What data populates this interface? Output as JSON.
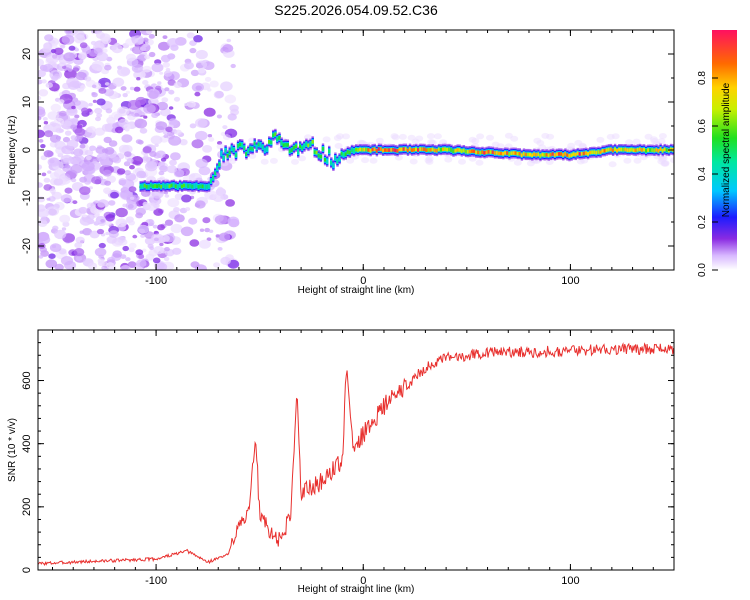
{
  "figure": {
    "title": "S225.2026.054.09.52.C36"
  },
  "chart_data": [
    {
      "type": "heatmap",
      "title": "S225.2026.054.09.52.C36",
      "xlabel": "Height of straight line (km)",
      "ylabel": "Frequency (Hz)",
      "xlim": [
        -157,
        150
      ],
      "ylim": [
        -25,
        25
      ],
      "x_ticks": [
        -100,
        0,
        100
      ],
      "y_ticks": [
        -20,
        -10,
        0,
        10,
        20
      ],
      "colorbar": {
        "label": "Normalized spectral amplitude",
        "range": [
          0,
          1
        ],
        "ticks": [
          0.0,
          0.2,
          0.4,
          0.6,
          0.8
        ]
      },
      "ridge": [
        {
          "x": -108,
          "freq": -7.5,
          "amp": 0.55
        },
        {
          "x": -100,
          "freq": -7.5,
          "amp": 0.6
        },
        {
          "x": -90,
          "freq": -7.5,
          "amp": 0.55
        },
        {
          "x": -75,
          "freq": -7.5,
          "amp": 0.5
        },
        {
          "x": -68,
          "freq": -1,
          "amp": 0.5
        },
        {
          "x": -60,
          "freq": 0,
          "amp": 0.55
        },
        {
          "x": -50,
          "freq": 0.5,
          "amp": 0.5
        },
        {
          "x": -42,
          "freq": 2.5,
          "amp": 0.6
        },
        {
          "x": -35,
          "freq": 0,
          "amp": 0.55
        },
        {
          "x": -25,
          "freq": 0.5,
          "amp": 0.6
        },
        {
          "x": -15,
          "freq": -2,
          "amp": 0.5
        },
        {
          "x": -5,
          "freq": 0,
          "amp": 0.6
        },
        {
          "x": 5,
          "freq": 0,
          "amp": 0.9
        },
        {
          "x": 20,
          "freq": 0,
          "amp": 0.95
        },
        {
          "x": 40,
          "freq": 0,
          "amp": 0.7
        },
        {
          "x": 60,
          "freq": -0.5,
          "amp": 0.9
        },
        {
          "x": 80,
          "freq": -1,
          "amp": 0.75
        },
        {
          "x": 100,
          "freq": -1,
          "amp": 0.95
        },
        {
          "x": 120,
          "freq": 0,
          "amp": 0.8
        },
        {
          "x": 150,
          "freq": 0,
          "amp": 0.7
        }
      ]
    },
    {
      "type": "line",
      "xlabel": "Height of straight line (km)",
      "ylabel": "SNR (10 * v/v)",
      "xlim": [
        -157,
        150
      ],
      "ylim": [
        0,
        760
      ],
      "x_ticks": [
        -100,
        0,
        100
      ],
      "y_ticks": [
        0,
        200,
        400,
        600
      ],
      "series": [
        {
          "name": "SNR",
          "color": "#e8302e",
          "x": [
            -157,
            -140,
            -120,
            -100,
            -85,
            -75,
            -65,
            -60,
            -55,
            -52,
            -50,
            -45,
            -40,
            -35,
            -32,
            -30,
            -25,
            -20,
            -10,
            -8,
            -5,
            0,
            10,
            20,
            30,
            40,
            60,
            80,
            100,
            120,
            140,
            150
          ],
          "y": [
            20,
            25,
            30,
            35,
            60,
            25,
            50,
            160,
            180,
            420,
            180,
            120,
            90,
            180,
            570,
            250,
            260,
            280,
            350,
            650,
            380,
            430,
            520,
            580,
            640,
            670,
            690,
            690,
            695,
            700,
            700,
            700
          ]
        }
      ]
    }
  ]
}
